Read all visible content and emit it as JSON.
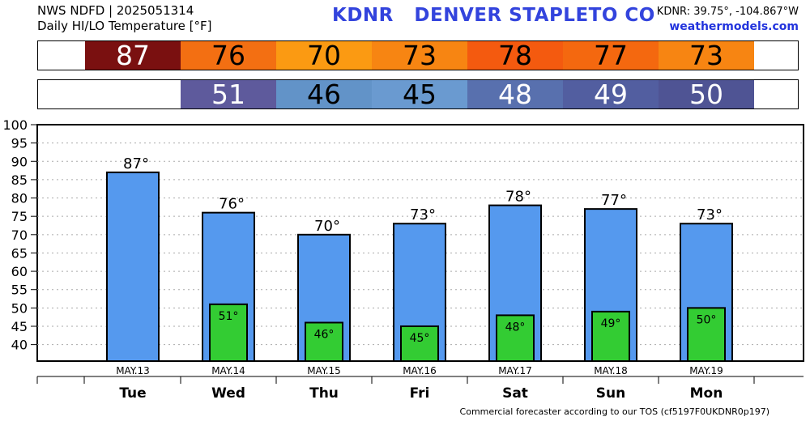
{
  "header": {
    "line1": "NWS NDFD | 2025051314",
    "line2": "Daily HI/LO Temperature [°F]",
    "station_title": "KDNR   DENVER STAPLETO CO",
    "coords": "KDNR: 39.75°, -104.867°W",
    "site": "weathermodels.com"
  },
  "footer": "Commercial forecaster according to our TOS (cf5197F0UKDNR0p197)",
  "hi_strip": [
    {
      "value": "87",
      "color": "#7a1010",
      "text_color": "#ffffff"
    },
    {
      "value": "76",
      "color": "#f36f12",
      "text_color": "#000000"
    },
    {
      "value": "70",
      "color": "#fb9a12",
      "text_color": "#000000"
    },
    {
      "value": "73",
      "color": "#f78512",
      "text_color": "#000000"
    },
    {
      "value": "78",
      "color": "#f45a0f",
      "text_color": "#000000"
    },
    {
      "value": "77",
      "color": "#f4680f",
      "text_color": "#000000"
    },
    {
      "value": "73",
      "color": "#f78512",
      "text_color": "#000000"
    }
  ],
  "lo_strip": [
    {
      "value": "",
      "color": "#ffffff",
      "text_color": "#000000"
    },
    {
      "value": "51",
      "color": "#5e5a9c",
      "text_color": "#ffffff"
    },
    {
      "value": "46",
      "color": "#6293c8",
      "text_color": "#000000"
    },
    {
      "value": "45",
      "color": "#6a9ad0",
      "text_color": "#000000"
    },
    {
      "value": "48",
      "color": "#5870ae",
      "text_color": "#ffffff"
    },
    {
      "value": "49",
      "color": "#525ea0",
      "text_color": "#ffffff"
    },
    {
      "value": "50",
      "color": "#4f5494",
      "text_color": "#ffffff"
    }
  ],
  "chart_data": {
    "type": "bar",
    "categories": [
      "Tue",
      "Wed",
      "Thu",
      "Fri",
      "Sat",
      "Sun",
      "Mon"
    ],
    "dates": [
      "MAY.13",
      "MAY.14",
      "MAY.15",
      "MAY.16",
      "MAY.17",
      "MAY.18",
      "MAY.19"
    ],
    "series": [
      {
        "values": [
          87,
          76,
          70,
          73,
          78,
          77,
          73
        ],
        "labels": [
          "87°",
          "76°",
          "70°",
          "73°",
          "78°",
          "77°",
          "73°"
        ],
        "color": "#5599ee"
      },
      {
        "values": [
          null,
          51,
          46,
          45,
          48,
          49,
          50
        ],
        "labels": [
          "",
          "51°",
          "46°",
          "45°",
          "48°",
          "49°",
          "50°"
        ],
        "color": "#33cc33"
      }
    ],
    "yticks": [
      "100",
      "95",
      "90",
      "85",
      "80",
      "75",
      "70",
      "65",
      "60",
      "55",
      "50",
      "45",
      "40"
    ],
    "ylim": [
      35.5,
      100
    ],
    "grid": true
  }
}
